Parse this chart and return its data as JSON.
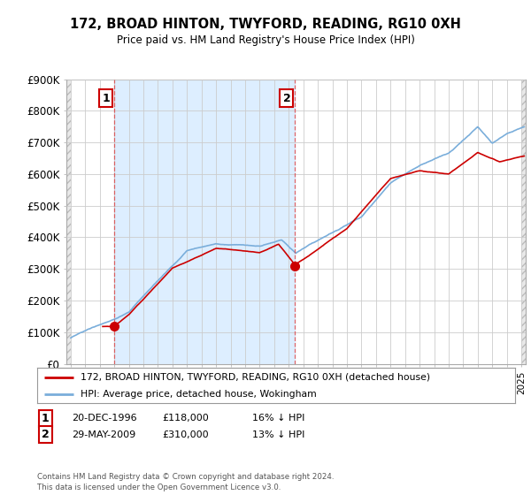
{
  "title": "172, BROAD HINTON, TWYFORD, READING, RG10 0XH",
  "subtitle": "Price paid vs. HM Land Registry's House Price Index (HPI)",
  "ylim": [
    0,
    900000
  ],
  "yticks": [
    0,
    100000,
    200000,
    300000,
    400000,
    500000,
    600000,
    700000,
    800000,
    900000
  ],
  "ytick_labels": [
    "£0",
    "£100K",
    "£200K",
    "£300K",
    "£400K",
    "£500K",
    "£600K",
    "£700K",
    "£800K",
    "£900K"
  ],
  "hpi_color": "#7aaedb",
  "price_color": "#cc0000",
  "sale1_date": 1996.97,
  "sale1_price": 118000,
  "sale2_date": 2009.41,
  "sale2_price": 310000,
  "legend_line1": "172, BROAD HINTON, TWYFORD, READING, RG10 0XH (detached house)",
  "legend_line2": "HPI: Average price, detached house, Wokingham",
  "footnote": "Contains HM Land Registry data © Crown copyright and database right 2024.\nThis data is licensed under the Open Government Licence v3.0.",
  "grid_color": "#cccccc",
  "hatch_color": "#d8d8d8",
  "between_sales_color": "#ddeeff",
  "xlim_start": 1993.7,
  "xlim_end": 2025.3,
  "xtick_start": 1994,
  "xtick_end": 2025
}
